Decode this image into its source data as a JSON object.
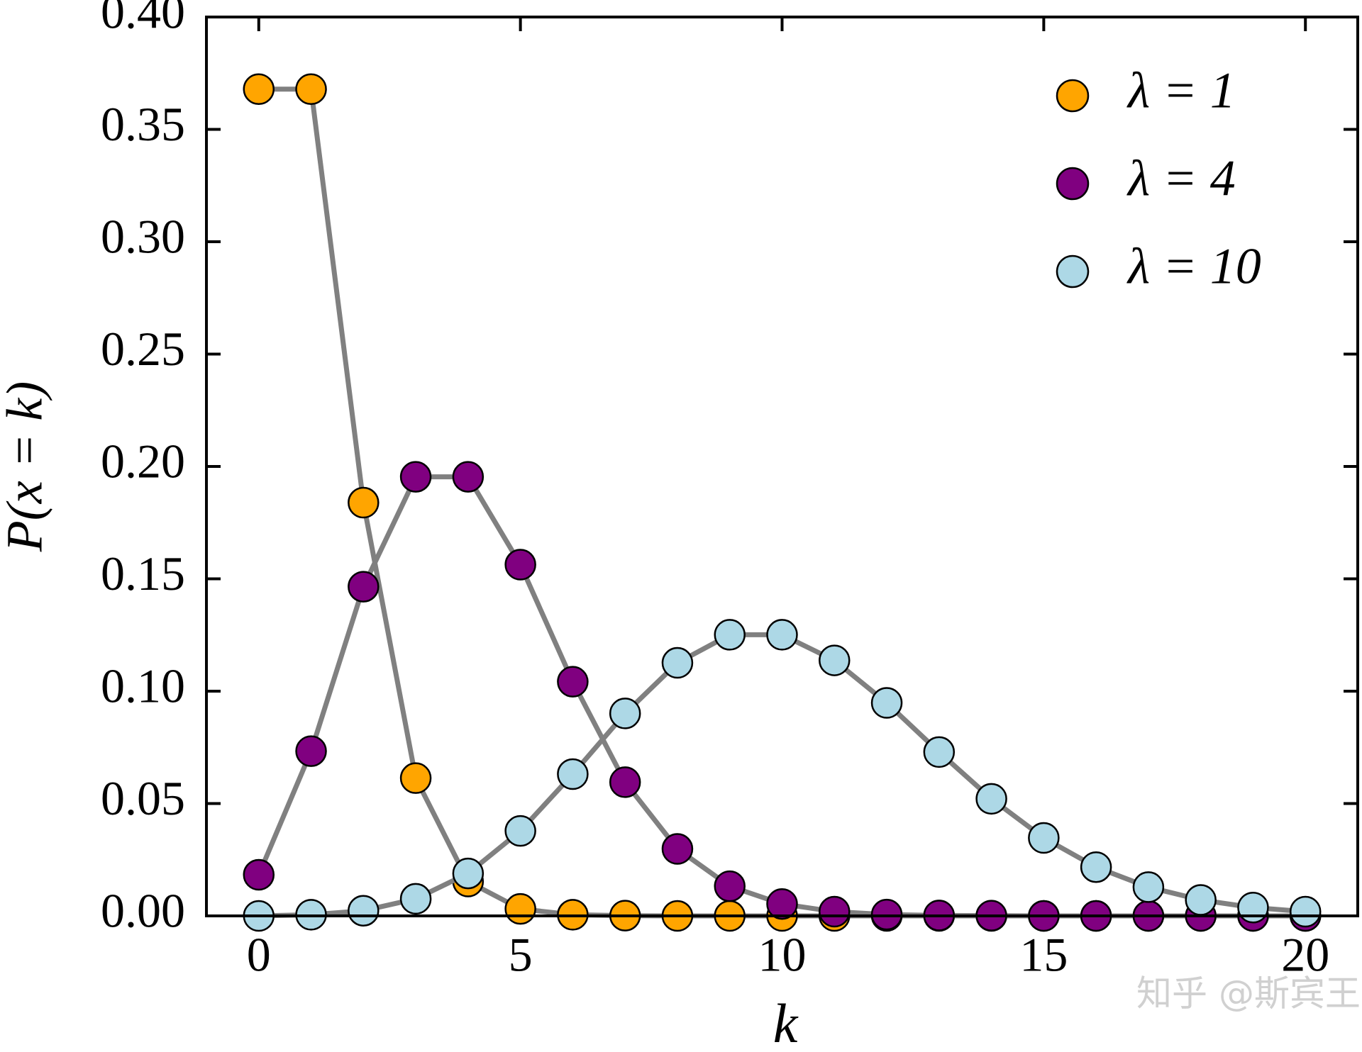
{
  "chart_data": {
    "type": "line",
    "x_label": "k",
    "y_label": "P(x = k)",
    "x": [
      0,
      1,
      2,
      3,
      4,
      5,
      6,
      7,
      8,
      9,
      10,
      11,
      12,
      13,
      14,
      15,
      16,
      17,
      18,
      19,
      20
    ],
    "series": [
      {
        "name": "λ = 1",
        "color": "#ffa500",
        "values": [
          0.3679,
          0.3679,
          0.1839,
          0.0613,
          0.0153,
          0.0031,
          0.0005,
          0.0001,
          0,
          0,
          0,
          0,
          0,
          0,
          0,
          0,
          0,
          0,
          0,
          0,
          0
        ]
      },
      {
        "name": "λ = 4",
        "color": "#800080",
        "values": [
          0.0183,
          0.0733,
          0.1465,
          0.1954,
          0.1954,
          0.1563,
          0.1042,
          0.0595,
          0.0298,
          0.0132,
          0.0053,
          0.0019,
          0.0006,
          0.0002,
          0.0001,
          0,
          0,
          0,
          0,
          0,
          0
        ]
      },
      {
        "name": "λ = 10",
        "color": "#add8e6",
        "values": [
          0,
          0.0005,
          0.0023,
          0.0076,
          0.0189,
          0.0378,
          0.0631,
          0.0901,
          0.1126,
          0.1251,
          0.1251,
          0.1137,
          0.0948,
          0.0729,
          0.0521,
          0.0347,
          0.0217,
          0.0128,
          0.0071,
          0.0037,
          0.0019
        ]
      }
    ],
    "line_color": "#808080",
    "xlim": [
      -1,
      21
    ],
    "ylim": [
      0,
      0.4
    ],
    "xticks": [
      0,
      5,
      10,
      15,
      20
    ],
    "yticks": [
      {
        "value": 0,
        "label": "0.00"
      },
      {
        "value": 0.05,
        "label": "0.05"
      },
      {
        "value": 0.1,
        "label": "0.10"
      },
      {
        "value": 0.15,
        "label": "0.15"
      },
      {
        "value": 0.2,
        "label": "0.20"
      },
      {
        "value": 0.25,
        "label": "0.25"
      },
      {
        "value": 0.3,
        "label": "0.30"
      },
      {
        "value": 0.35,
        "label": "0.35"
      },
      {
        "value": 0.4,
        "label": "0.40"
      }
    ],
    "legend": "upper right",
    "watermark": "知乎 @斯宾王"
  }
}
